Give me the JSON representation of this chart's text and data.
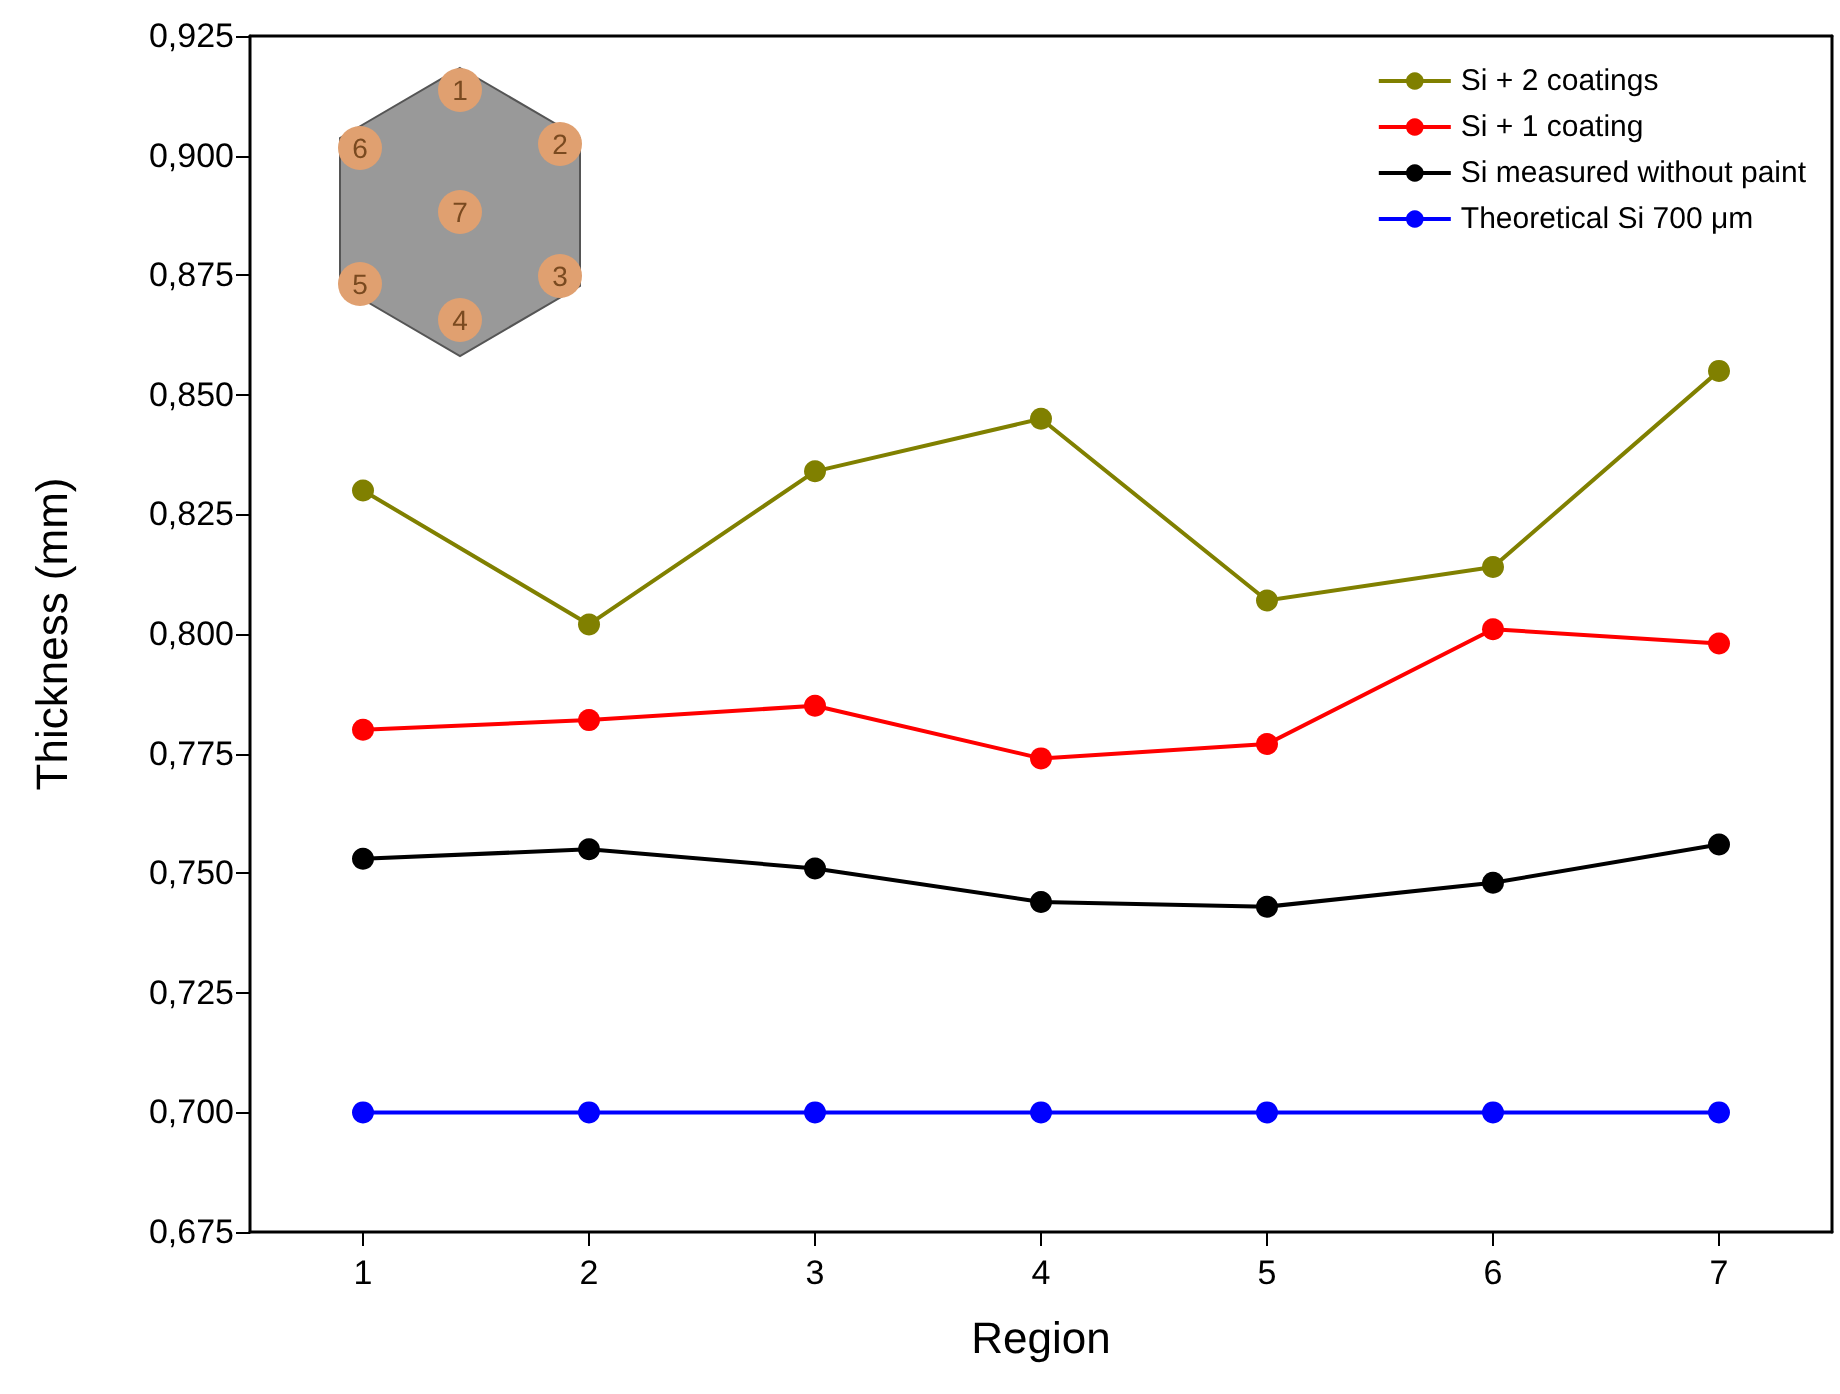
{
  "chart_data": {
    "type": "line",
    "xlabel": "Region",
    "ylabel": "Thickness (mm)",
    "categories": [
      "1",
      "2",
      "3",
      "4",
      "5",
      "6",
      "7"
    ],
    "series": [
      {
        "name": "Si + 2 coatings",
        "color": "#808000",
        "values": [
          0.83,
          0.802,
          0.834,
          0.845,
          0.807,
          0.814,
          0.855
        ]
      },
      {
        "name": "Si + 1 coating",
        "color": "#ff0000",
        "values": [
          0.78,
          0.782,
          0.785,
          0.774,
          0.777,
          0.801,
          0.798
        ]
      },
      {
        "name": "Si measured without paint",
        "color": "#000000",
        "values": [
          0.753,
          0.755,
          0.751,
          0.744,
          0.743,
          0.748,
          0.756
        ]
      },
      {
        "name": "Theoretical Si 700 μm",
        "color": "#0000ff",
        "values": [
          0.7,
          0.7,
          0.7,
          0.7,
          0.7,
          0.7,
          0.7
        ]
      }
    ],
    "ylim": [
      0.675,
      0.925
    ],
    "yticks": [
      {
        "value": 0.675,
        "label": "0,675"
      },
      {
        "value": 0.7,
        "label": "0,700"
      },
      {
        "value": 0.725,
        "label": "0,725"
      },
      {
        "value": 0.75,
        "label": "0,750"
      },
      {
        "value": 0.775,
        "label": "0,775"
      },
      {
        "value": 0.8,
        "label": "0,800"
      },
      {
        "value": 0.825,
        "label": "0,825"
      },
      {
        "value": 0.85,
        "label": "0,850"
      },
      {
        "value": 0.875,
        "label": "0,875"
      },
      {
        "value": 0.9,
        "label": "0,900"
      },
      {
        "value": 0.925,
        "label": "0,925"
      }
    ],
    "annotations": [
      "1",
      "2",
      "3",
      "4",
      "5",
      "6",
      "7"
    ],
    "grid": false,
    "legend": "top right",
    "marker": "circle",
    "line_style": "solid"
  }
}
